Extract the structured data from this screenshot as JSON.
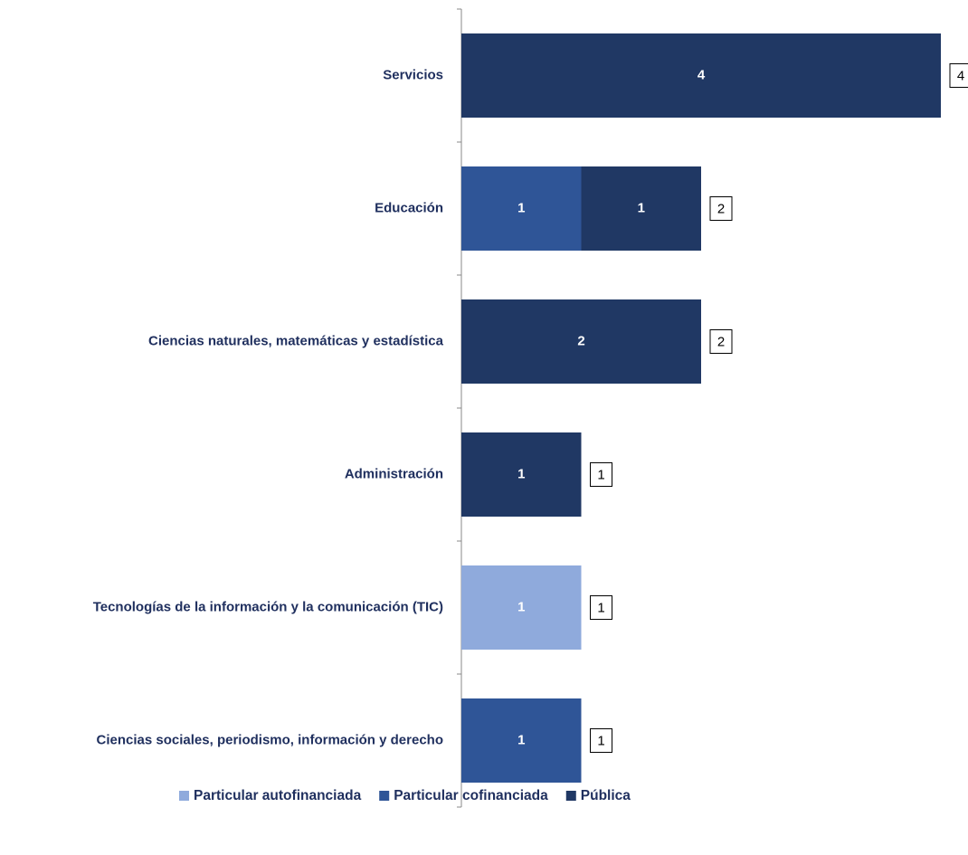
{
  "chart_data": {
    "type": "stacked-barh",
    "categories": [
      "Servicios",
      "Educación",
      "Ciencias naturales, matemáticas y estadística",
      "Administración",
      "Tecnologías de la información y la comunicación (TIC)",
      "Ciencias sociales, periodismo, información y derecho"
    ],
    "series": [
      {
        "name": "Particular autofinanciada",
        "color": "#8faadc",
        "values": [
          null,
          null,
          null,
          null,
          1,
          null
        ]
      },
      {
        "name": "Particular cofinanciada",
        "color": "#2f5597",
        "values": [
          null,
          1,
          null,
          null,
          null,
          1
        ]
      },
      {
        "name": "Pública",
        "color": "#203864",
        "values": [
          4,
          1,
          2,
          1,
          null,
          null
        ]
      }
    ],
    "totals": [
      4,
      2,
      2,
      1,
      1,
      1
    ],
    "xlim": [
      0,
      4
    ]
  }
}
